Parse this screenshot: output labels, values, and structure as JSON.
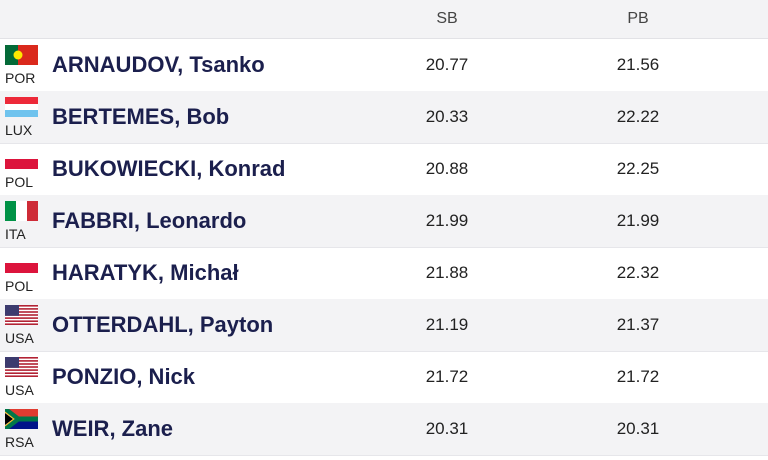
{
  "table": {
    "header": [
      "SB",
      "PB"
    ],
    "rows": [
      {
        "country": "POR",
        "name": "ARNAUDOV, Tsanko",
        "sb": "20.77",
        "pb": "21.56"
      },
      {
        "country": "LUX",
        "name": "BERTEMES, Bob",
        "sb": "20.33",
        "pb": "22.22"
      },
      {
        "country": "POL",
        "name": "BUKOWIECKI, Konrad",
        "sb": "20.88",
        "pb": "22.25"
      },
      {
        "country": "ITA",
        "name": "FABBRI, Leonardo",
        "sb": "21.99",
        "pb": "21.99"
      },
      {
        "country": "POL",
        "name": "HARATYK, Michał",
        "sb": "21.88",
        "pb": "22.32"
      },
      {
        "country": "USA",
        "name": "OTTERDAHL, Payton",
        "sb": "21.19",
        "pb": "21.37"
      },
      {
        "country": "USA",
        "name": "PONZIO, Nick",
        "sb": "21.72",
        "pb": "21.72"
      },
      {
        "country": "RSA",
        "name": "WEIR, Zane",
        "sb": "20.31",
        "pb": "20.31"
      }
    ]
  }
}
